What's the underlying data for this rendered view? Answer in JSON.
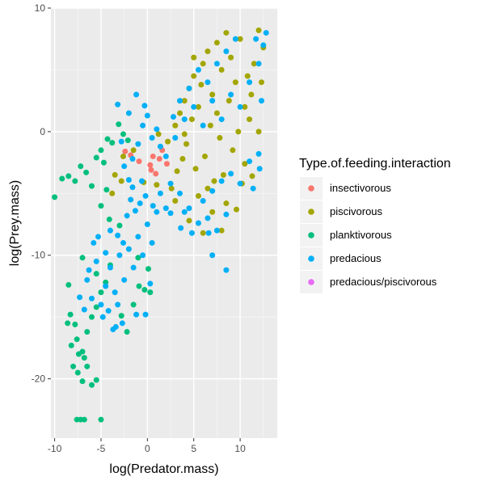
{
  "chart_data": {
    "type": "scatter",
    "xlabel": "log(Predator.mass)",
    "ylabel": "log(Prey.mass)",
    "xlim": [
      -10.4,
      14.0
    ],
    "ylim": [
      -24.8,
      10.0
    ],
    "x_ticks": [
      -10,
      -5,
      0,
      5,
      10
    ],
    "y_ticks": [
      -20,
      -10,
      0,
      10
    ],
    "grid": true,
    "legend": {
      "title": "Type.of.feeding.interaction",
      "position": "right"
    },
    "series": [
      {
        "name": "insectivorous",
        "color": "#F8766D",
        "points": [
          [
            -2.4,
            -1.6
          ],
          [
            -1.8,
            -1.9
          ],
          [
            -0.9,
            -2.4
          ],
          [
            0.3,
            -2.7
          ],
          [
            0.6,
            -2.0
          ],
          [
            0.9,
            -3.4
          ],
          [
            1.3,
            -2.2
          ],
          [
            1.6,
            -1.5
          ],
          [
            2.1,
            -2.6
          ],
          [
            0.4,
            -3.1
          ]
        ]
      },
      {
        "name": "piscivorous",
        "color": "#A3A500",
        "points": [
          [
            3.0,
            0.5
          ],
          [
            3.5,
            1.5
          ],
          [
            4.0,
            2.5
          ],
          [
            4.5,
            3.5
          ],
          [
            5.0,
            4.5
          ],
          [
            5.5,
            2.0
          ],
          [
            6.0,
            5.5
          ],
          [
            6.5,
            6.5
          ],
          [
            7.0,
            3.0
          ],
          [
            7.5,
            7.2
          ],
          [
            8.0,
            5.0
          ],
          [
            8.5,
            8.0
          ],
          [
            9.0,
            6.0
          ],
          [
            9.5,
            4.0
          ],
          [
            10.0,
            7.5
          ],
          [
            10.5,
            2.0
          ],
          [
            11.0,
            1.0
          ],
          [
            11.5,
            5.5
          ],
          [
            12.0,
            8.2
          ],
          [
            12.5,
            6.8
          ],
          [
            4.2,
            -1.0
          ],
          [
            5.2,
            -3.0
          ],
          [
            6.2,
            -2.0
          ],
          [
            7.2,
            -4.0
          ],
          [
            8.2,
            -3.5
          ],
          [
            9.2,
            -1.5
          ],
          [
            10.2,
            -4.2
          ],
          [
            3.2,
            -3.2
          ],
          [
            2.2,
            -0.8
          ],
          [
            1.2,
            -0.2
          ],
          [
            -1.5,
            -1.5
          ],
          [
            -2.6,
            -2.0
          ],
          [
            -3.5,
            -3.5
          ],
          [
            -3.8,
            -5.0
          ],
          [
            -2.8,
            -4.0
          ],
          [
            4.8,
            1.0
          ],
          [
            6.8,
            0.5
          ],
          [
            8.8,
            2.5
          ],
          [
            10.8,
            4.5
          ],
          [
            5.8,
            3.8
          ],
          [
            7.8,
            -0.5
          ],
          [
            9.8,
            0.0
          ],
          [
            11.2,
            3.0
          ],
          [
            3.8,
            -2.2
          ],
          [
            6.5,
            -4.6
          ],
          [
            8.5,
            -5.8
          ],
          [
            5.5,
            -5.2
          ],
          [
            7.0,
            -6.5
          ],
          [
            8.0,
            -8.0
          ],
          [
            6.0,
            -8.2
          ],
          [
            4.5,
            -7.2
          ],
          [
            3.0,
            -5.6
          ],
          [
            12.3,
            4.0
          ],
          [
            2.6,
            -4.6
          ],
          [
            1.0,
            -4.3
          ],
          [
            -0.4,
            -4.1
          ],
          [
            9.6,
            -6.3
          ],
          [
            12.0,
            0.0
          ],
          [
            5.0,
            6.0
          ],
          [
            7.5,
            1.5
          ],
          [
            4.0,
            -0.2
          ],
          [
            10.5,
            -2.6
          ],
          [
            11.3,
            -3.6
          ]
        ]
      },
      {
        "name": "planktivorous",
        "color": "#00BF7D",
        "points": [
          [
            -10.0,
            -5.3
          ],
          [
            -9.2,
            -3.8
          ],
          [
            -8.5,
            -3.6
          ],
          [
            -7.8,
            -4.0
          ],
          [
            -7.2,
            -2.8
          ],
          [
            -6.6,
            -3.3
          ],
          [
            -6.0,
            -4.4
          ],
          [
            -5.5,
            -2.1
          ],
          [
            -5.0,
            -1.5
          ],
          [
            -4.7,
            -2.5
          ],
          [
            -4.3,
            -0.6
          ],
          [
            -3.8,
            -0.9
          ],
          [
            -3.1,
            0.6
          ],
          [
            -2.6,
            -0.2
          ],
          [
            -2.1,
            -0.7
          ],
          [
            -5.0,
            -6.0
          ],
          [
            -4.4,
            -4.7
          ],
          [
            -4.1,
            -7.1
          ],
          [
            -3.0,
            -7.6
          ],
          [
            -8.6,
            -15.5
          ],
          [
            -8.2,
            -17.3
          ],
          [
            -7.6,
            -16.8
          ],
          [
            -7.0,
            -17.8
          ],
          [
            -6.5,
            -16.2
          ],
          [
            -6.0,
            -15.0
          ],
          [
            -5.5,
            -14.2
          ],
          [
            -5.0,
            -13.0
          ],
          [
            -4.5,
            -12.2
          ],
          [
            -8.0,
            -19.0
          ],
          [
            -7.5,
            -19.5
          ],
          [
            -7.0,
            -20.2
          ],
          [
            -6.5,
            -19.0
          ],
          [
            -6.0,
            -20.5
          ],
          [
            -5.5,
            -20.1
          ],
          [
            -8.3,
            -14.8
          ],
          [
            -7.8,
            -15.6
          ],
          [
            -7.4,
            -18.0
          ],
          [
            -6.8,
            -18.3
          ],
          [
            -7.6,
            -23.3
          ],
          [
            -7.2,
            -23.3
          ],
          [
            -6.8,
            -23.3
          ],
          [
            -5.0,
            -23.3
          ],
          [
            -8.5,
            -12.4
          ],
          [
            -7.0,
            -10.2
          ],
          [
            -5.5,
            -11.5
          ],
          [
            -4.0,
            -10.8
          ],
          [
            -2.8,
            -14.9
          ],
          [
            -2.2,
            -16.2
          ],
          [
            -1.5,
            -14.0
          ],
          [
            -0.9,
            -12.5
          ],
          [
            -0.3,
            -12.8
          ],
          [
            -1.0,
            -10.2
          ],
          [
            0.1,
            -11.1
          ],
          [
            0.3,
            -13.0
          ]
        ]
      },
      {
        "name": "predacious",
        "color": "#00B0F6",
        "points": [
          [
            -6.5,
            -12.0
          ],
          [
            -6.0,
            -13.5
          ],
          [
            -5.5,
            -10.5
          ],
          [
            -5.0,
            -14.0
          ],
          [
            -4.5,
            -12.5
          ],
          [
            -4.0,
            -11.0
          ],
          [
            -3.5,
            -13.0
          ],
          [
            -3.0,
            -10.0
          ],
          [
            -2.5,
            -12.0
          ],
          [
            -2.0,
            -9.5
          ],
          [
            -1.5,
            -11.0
          ],
          [
            -1.0,
            -8.5
          ],
          [
            -0.5,
            -10.0
          ],
          [
            0.0,
            -7.5
          ],
          [
            0.5,
            -9.0
          ],
          [
            -4.8,
            -15.0
          ],
          [
            -4.2,
            -14.5
          ],
          [
            -3.7,
            -16.0
          ],
          [
            -3.2,
            -14.0
          ],
          [
            -2.7,
            -15.5
          ],
          [
            -5.8,
            -9.0
          ],
          [
            -5.3,
            -8.5
          ],
          [
            -4.5,
            -9.8
          ],
          [
            -4.0,
            -8.0
          ],
          [
            -3.2,
            -8.4
          ],
          [
            -2.6,
            -9.0
          ],
          [
            -2.2,
            -6.8
          ],
          [
            -1.8,
            -5.5
          ],
          [
            -1.6,
            -4.5
          ],
          [
            -1.3,
            -6.4
          ],
          [
            -0.8,
            -5.8
          ],
          [
            -0.6,
            -4.0
          ],
          [
            -0.2,
            -5.2
          ],
          [
            0.6,
            -6.0
          ],
          [
            -2.5,
            -2.8
          ],
          [
            -2.0,
            -3.9
          ],
          [
            -1.6,
            -2.2
          ],
          [
            -1.0,
            -1.0
          ],
          [
            -0.5,
            0.5
          ],
          [
            0.0,
            1.3
          ],
          [
            0.5,
            -0.5
          ],
          [
            1.0,
            0.2
          ],
          [
            1.4,
            -1.2
          ],
          [
            -3.2,
            2.2
          ],
          [
            -2.0,
            1.5
          ],
          [
            -1.2,
            3.0
          ],
          [
            -0.3,
            2.1
          ],
          [
            -2.8,
            -0.8
          ],
          [
            2.5,
            -4.2
          ],
          [
            3.5,
            -5.0
          ],
          [
            4.5,
            -6.2
          ],
          [
            5.5,
            -7.4
          ],
          [
            6.5,
            -7.0
          ],
          [
            7.5,
            -8.0
          ],
          [
            8.5,
            -6.7
          ],
          [
            6.0,
            -5.6
          ],
          [
            7.0,
            -4.8
          ],
          [
            8.0,
            -4.0
          ],
          [
            9.0,
            -3.4
          ],
          [
            10.0,
            -4.2
          ],
          [
            11.0,
            -2.4
          ],
          [
            12.0,
            -1.8
          ],
          [
            2.0,
            -2.0
          ],
          [
            3.0,
            -0.5
          ],
          [
            4.0,
            1.0
          ],
          [
            5.0,
            2.0
          ],
          [
            6.0,
            0.5
          ],
          [
            7.0,
            2.5
          ],
          [
            8.0,
            1.0
          ],
          [
            9.0,
            3.0
          ],
          [
            10.0,
            2.0
          ],
          [
            11.0,
            4.0
          ],
          [
            12.0,
            5.5
          ],
          [
            12.5,
            7.0
          ],
          [
            12.3,
            2.5
          ],
          [
            11.7,
            7.5
          ],
          [
            12.8,
            8.0
          ],
          [
            5.5,
            5.0
          ],
          [
            6.5,
            4.0
          ],
          [
            7.5,
            5.5
          ],
          [
            8.5,
            6.5
          ],
          [
            9.5,
            7.5
          ],
          [
            4.5,
            3.5
          ],
          [
            3.5,
            2.5
          ],
          [
            2.8,
            1.2
          ],
          [
            7.0,
            -10.0
          ],
          [
            8.5,
            -11.2
          ],
          [
            4.0,
            -6.5
          ],
          [
            2.0,
            -6.2
          ],
          [
            1.0,
            -6.5
          ],
          [
            4.8,
            -8.2
          ],
          [
            3.6,
            -7.8
          ],
          [
            6.6,
            -8.2
          ],
          [
            2.5,
            -6.6
          ],
          [
            1.4,
            -5.0
          ],
          [
            12.1,
            -3.0
          ],
          [
            11.4,
            -4.6
          ],
          [
            0.3,
            -12.3
          ],
          [
            -1.2,
            -14.8
          ],
          [
            -0.2,
            -14.8
          ],
          [
            -3.4,
            -15.8
          ],
          [
            -6.8,
            -14.4
          ],
          [
            -6.3,
            -11.2
          ],
          [
            -7.3,
            -13.4
          ]
        ]
      },
      {
        "name": "predacious/piscivorous",
        "color": "#E76BF3",
        "points": []
      }
    ]
  }
}
